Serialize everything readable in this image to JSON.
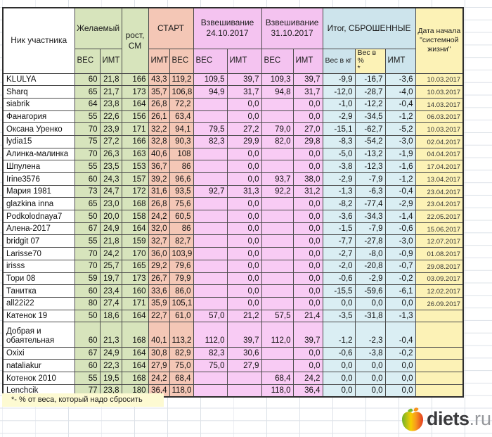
{
  "header": {
    "nick": "Ник участника",
    "desired": "Желаемый",
    "height": "рост,\nСМ",
    "start": "СТАРТ",
    "weigh1": "Взвешивание\n24.10.2017",
    "weigh2": "Взвешивание\n31.10.2017",
    "total": "Итог, СБРОШЕННЫЕ",
    "date": "Дата начала\n\"системной\nжизни\"",
    "sub": [
      "ВЕС",
      "ИМТ",
      "ИМТ",
      "ВЕС",
      "ВЕС",
      "ИМТ",
      "ВЕС",
      "ИМТ",
      "Вес в кг",
      "Вес в %\n*",
      "ИМТ"
    ]
  },
  "rows": [
    [
      "KLULYA",
      "60",
      "21,8",
      "166",
      "43,3",
      "119,2",
      "109,5",
      "39,7",
      "109,3",
      "39,7",
      "-9,9",
      "-16,7",
      "-3,6",
      "10.03.2017"
    ],
    [
      "Sharq",
      "65",
      "21,7",
      "173",
      "35,7",
      "106,8",
      "94,9",
      "31,7",
      "94,8",
      "31,7",
      "-12,0",
      "-28,7",
      "-4,0",
      "10.03.2017"
    ],
    [
      "siabrik",
      "64",
      "23,8",
      "164",
      "26,8",
      "72,2",
      "",
      "0,0",
      "",
      "0,0",
      "-1,0",
      "-12,2",
      "-0,4",
      "14.03.2017"
    ],
    [
      "Фанагория",
      "55",
      "22,6",
      "156",
      "26,1",
      "63,4",
      "",
      "0,0",
      "",
      "0,0",
      "-2,9",
      "-34,5",
      "-1,2",
      "06.03.2017"
    ],
    [
      "Оксана Уренко",
      "70",
      "23,9",
      "171",
      "32,2",
      "94,1",
      "79,5",
      "27,2",
      "79,0",
      "27,0",
      "-15,1",
      "-62,7",
      "-5,2",
      "10.03.2017"
    ],
    [
      "lydia15",
      "75",
      "27,2",
      "166",
      "32,8",
      "90,3",
      "82,3",
      "29,9",
      "82,0",
      "29,8",
      "-8,3",
      "-54,2",
      "-3,0",
      "02.04.2017"
    ],
    [
      "Алинка-малинка",
      "70",
      "26,3",
      "163",
      "40,6",
      "108",
      "",
      "0,0",
      "",
      "0,0",
      "-5,0",
      "-13,2",
      "-1,9",
      "04.04.2017"
    ],
    [
      "Шпулена",
      "55",
      "23,5",
      "153",
      "36,7",
      "86",
      "",
      "0,0",
      "",
      "0,0",
      "-3,8",
      "-12,3",
      "-1,6",
      "17.04.2017"
    ],
    [
      "Irine3576",
      "60",
      "24,3",
      "157",
      "39,2",
      "96,6",
      "",
      "0,0",
      "93,7",
      "38,0",
      "-2,9",
      "-7,9",
      "-1,2",
      "13.04.2017"
    ],
    [
      "Мария 1981",
      "73",
      "24,7",
      "172",
      "31,6",
      "93,5",
      "92,7",
      "31,3",
      "92,2",
      "31,2",
      "-1,3",
      "-6,3",
      "-0,4",
      "23.04.2017"
    ],
    [
      "glazkina inna",
      "65",
      "23,0",
      "168",
      "26,8",
      "75,6",
      "",
      "0,0",
      "",
      "0,0",
      "-8,2",
      "-77,4",
      "-2,9",
      "23.04.2017"
    ],
    [
      "Podkolodnaya7",
      "50",
      "20,0",
      "158",
      "24,2",
      "60,5",
      "",
      "0,0",
      "",
      "0,0",
      "-3,6",
      "-34,3",
      "-1,4",
      "22.05.2017"
    ],
    [
      "Алена-2017",
      "67",
      "24,9",
      "164",
      "32,0",
      "86",
      "",
      "0,0",
      "",
      "0,0",
      "-1,5",
      "-7,9",
      "-0,6",
      "15.06.2017"
    ],
    [
      "bridgit 07",
      "55",
      "21,8",
      "159",
      "32,7",
      "82,7",
      "",
      "0,0",
      "",
      "0,0",
      "-7,7",
      "-27,8",
      "-3,0",
      "12.07.2017"
    ],
    [
      "Larisse70",
      "70",
      "24,2",
      "170",
      "36,0",
      "103,9",
      "",
      "0,0",
      "",
      "0,0",
      "-2,7",
      "-8,0",
      "-0,9",
      "01.08.2017"
    ],
    [
      "irisss",
      "70",
      "25,7",
      "165",
      "29,2",
      "79,6",
      "",
      "0,0",
      "",
      "0,0",
      "-2,0",
      "-20,8",
      "-0,7",
      "29.08.2017"
    ],
    [
      "Тори 08",
      "59",
      "19,7",
      "173",
      "26,7",
      "79,9",
      "",
      "0,0",
      "",
      "0,0",
      "-0,6",
      "-2,9",
      "-0,2",
      "03.09.2017"
    ],
    [
      "Танитка",
      "60",
      "23,4",
      "160",
      "33,6",
      "86,0",
      "",
      "0,0",
      "",
      "0,0",
      "-15,5",
      "-59,6",
      "-6,1",
      "12.02.2017"
    ],
    [
      "all22i22",
      "80",
      "27,4",
      "171",
      "35,9",
      "105,1",
      "",
      "0,0",
      "",
      "0,0",
      "0,0",
      "0,0",
      "0,0",
      "26.09.2017"
    ],
    [
      "Катенок 19",
      "50",
      "18,6",
      "164",
      "22,7",
      "61,0",
      "57,0",
      "21,2",
      "57,5",
      "21,4",
      "-3,5",
      "-31,8",
      "-1,3",
      ""
    ],
    [
      "Добрая и обаятельная",
      "60",
      "21,3",
      "168",
      "40,1",
      "113,2",
      "112,0",
      "39,7",
      "112,0",
      "39,7",
      "-1,2",
      "-2,3",
      "-0,4",
      ""
    ],
    [
      "Oxixi",
      "67",
      "24,9",
      "164",
      "30,8",
      "82,9",
      "82,3",
      "30,6",
      "",
      "0,0",
      "-0,6",
      "-3,8",
      "-0,2",
      ""
    ],
    [
      "nataliakur",
      "60",
      "22,3",
      "164",
      "27,9",
      "75,0",
      "75,0",
      "27,9",
      "",
      "0,0",
      "0,0",
      "0,0",
      "0,0",
      ""
    ],
    [
      "Котенок 2010",
      "55",
      "19,5",
      "168",
      "24,2",
      "68,4",
      "",
      "",
      "68,4",
      "24,2",
      "0,0",
      "0,0",
      "0,0",
      ""
    ],
    [
      "Lenchcik",
      "77",
      "23,8",
      "180",
      "36,4",
      "118,0",
      "",
      "",
      "118,0",
      "36,4",
      "0,0",
      "0,0",
      "0,0",
      ""
    ]
  ],
  "footnote": "*- % от веса, который надо сбросить",
  "logo": {
    "brand": "diets",
    "tld": ".ru"
  },
  "palette": {
    "desired_green": "#d7e4bc",
    "start_salmon": "#f4c7b6",
    "weighin_pink": "#f8cbf4",
    "total_blue": "#daeef3",
    "date_yellow": "#fcf2b6",
    "grid_line": "#dde2e8",
    "cell_border": "#4c4c4c"
  }
}
